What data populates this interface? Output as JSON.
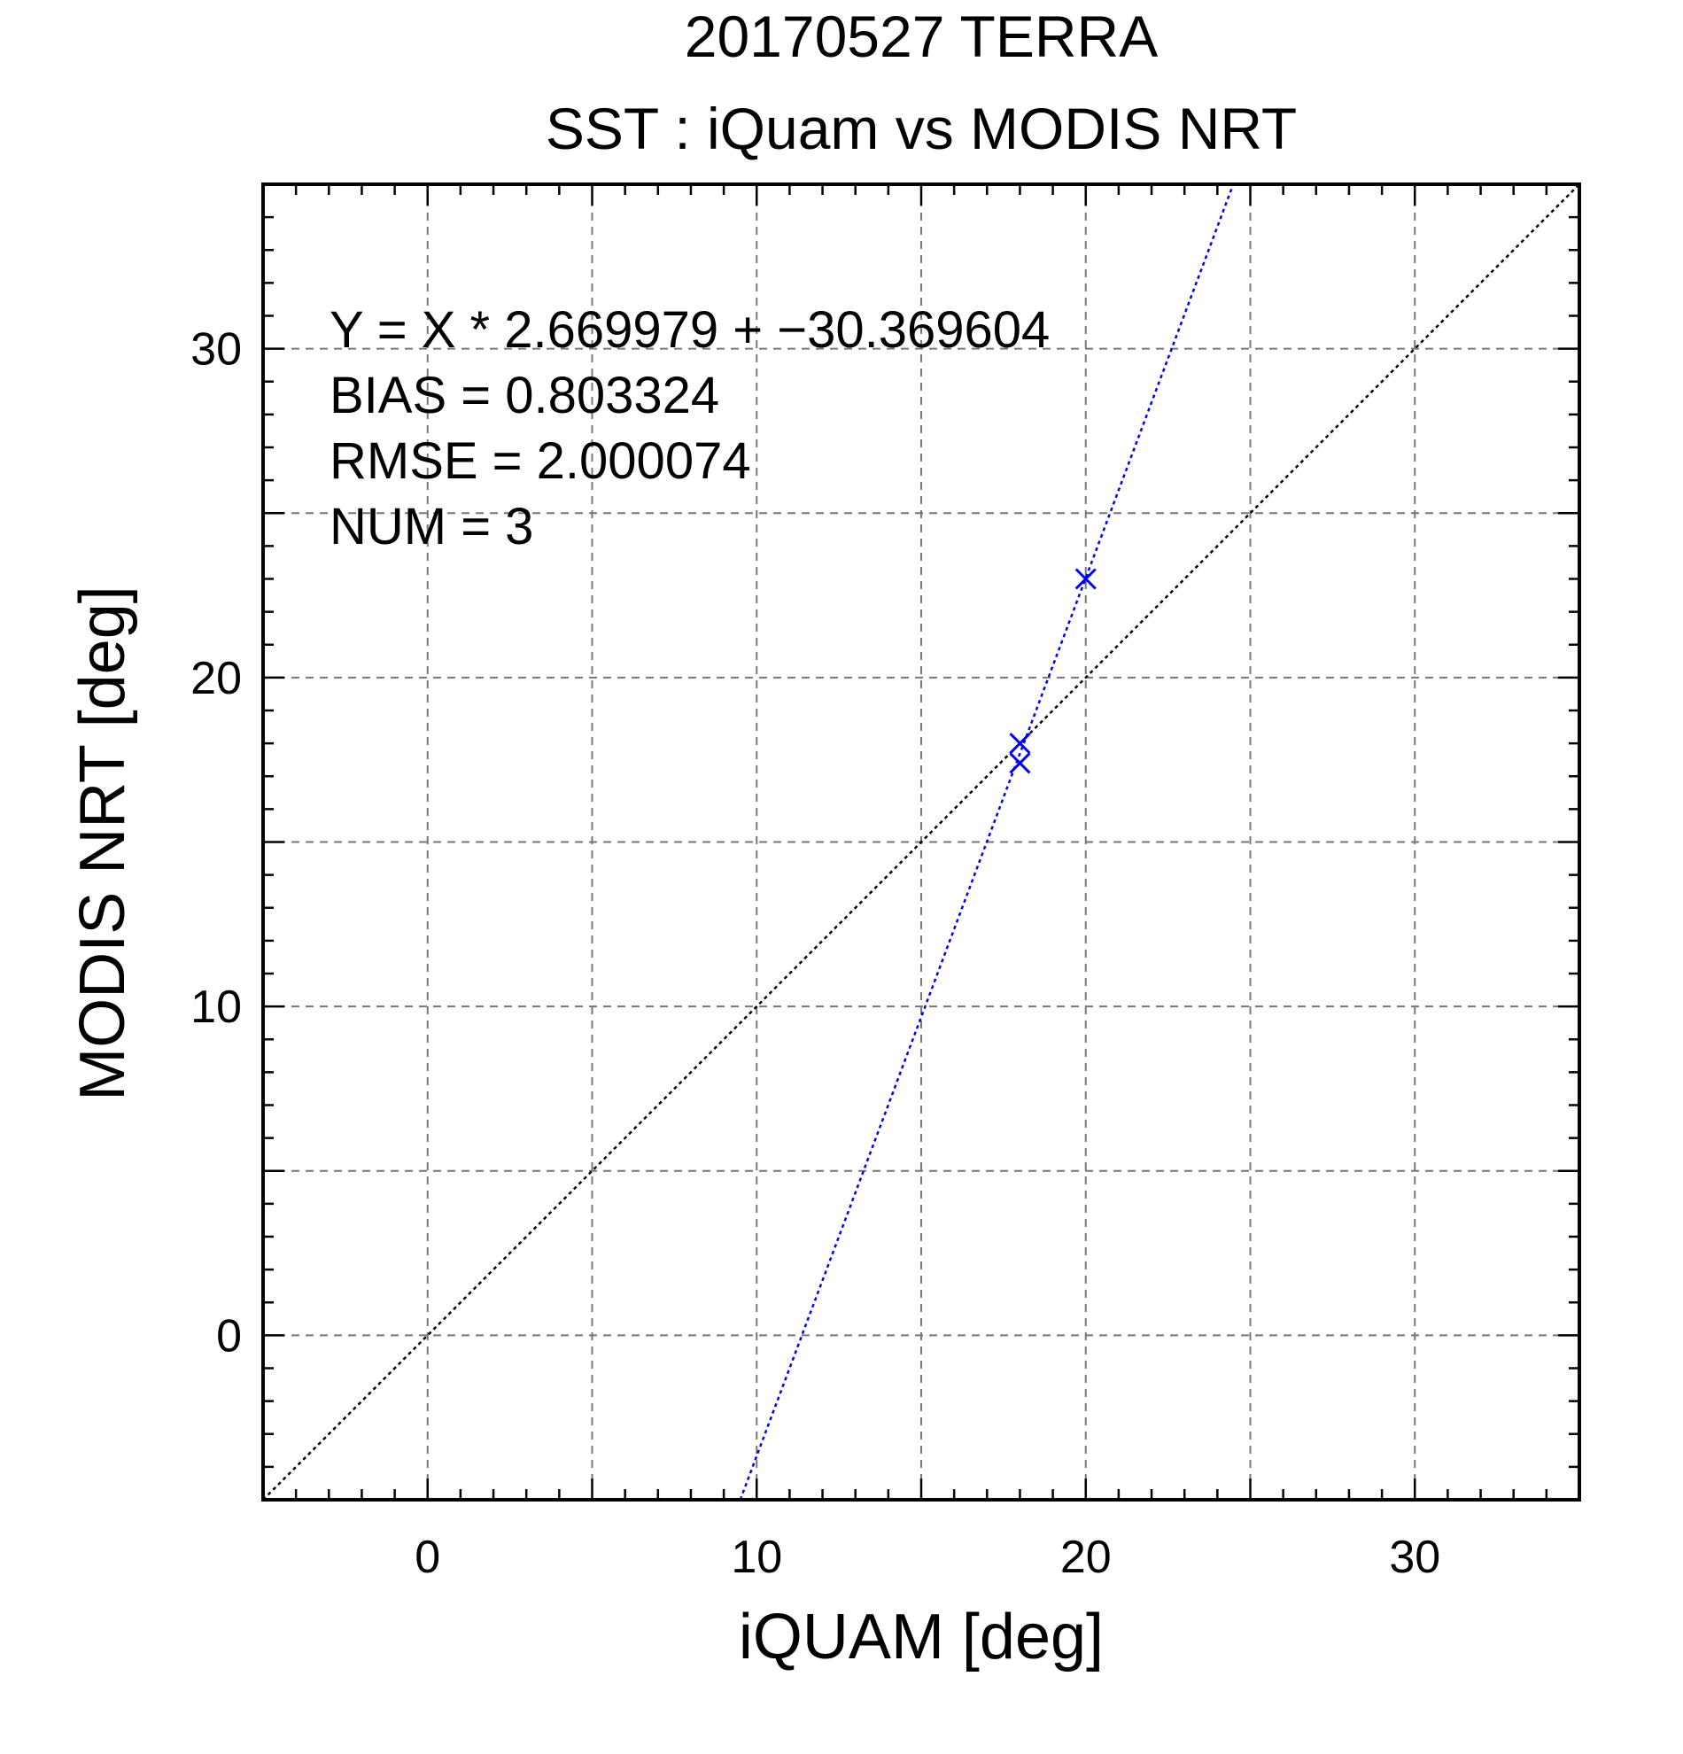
{
  "chart_data": {
    "type": "scatter",
    "title_lines": [
      "20170527 TERRA",
      "SST : iQuam vs MODIS NRT"
    ],
    "xlabel": "iQUAM [deg]",
    "ylabel": "MODIS NRT [deg]",
    "xlim": [
      -5,
      35
    ],
    "ylim": [
      -5,
      35
    ],
    "xticks": [
      0,
      10,
      20,
      30
    ],
    "yticks": [
      0,
      10,
      20,
      30
    ],
    "minor_step": 1,
    "grid_step": 5,
    "grid": true,
    "points": [
      {
        "x": 18.0,
        "y": 18.0
      },
      {
        "x": 18.0,
        "y": 17.4
      },
      {
        "x": 20.0,
        "y": 23.0
      }
    ],
    "marker": "x",
    "series_color": "#0000ee",
    "fit_line": {
      "slope": 2.669979,
      "intercept": -30.369604
    },
    "reference_line": {
      "slope": 1,
      "intercept": 0
    },
    "annotations": [
      "Y = X * 2.669979 + −30.369604",
      "BIAS = 0.803324",
      "RMSE = 2.000074",
      "NUM = 3"
    ]
  }
}
